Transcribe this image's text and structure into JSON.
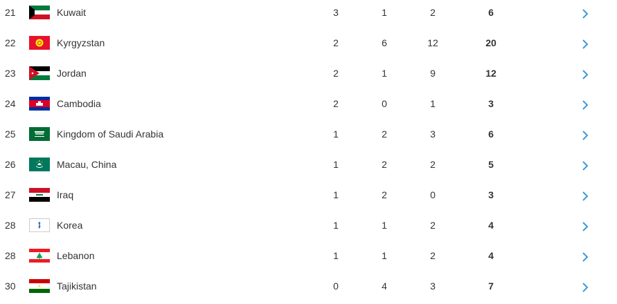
{
  "medal_table": {
    "rows": [
      {
        "rank": "21",
        "country": "Kuwait",
        "gold": "3",
        "silver": "1",
        "bronze": "2",
        "total": "6",
        "flag": "kuwait-flag"
      },
      {
        "rank": "22",
        "country": "Kyrgyzstan",
        "gold": "2",
        "silver": "6",
        "bronze": "12",
        "total": "20",
        "flag": "kyrgyzstan-flag"
      },
      {
        "rank": "23",
        "country": "Jordan",
        "gold": "2",
        "silver": "1",
        "bronze": "9",
        "total": "12",
        "flag": "jordan-flag"
      },
      {
        "rank": "24",
        "country": "Cambodia",
        "gold": "2",
        "silver": "0",
        "bronze": "1",
        "total": "3",
        "flag": "cambodia-flag"
      },
      {
        "rank": "25",
        "country": "Kingdom of Saudi Arabia",
        "gold": "1",
        "silver": "2",
        "bronze": "3",
        "total": "6",
        "flag": "saudi-arabia-flag"
      },
      {
        "rank": "26",
        "country": "Macau, China",
        "gold": "1",
        "silver": "2",
        "bronze": "2",
        "total": "5",
        "flag": "macau-flag"
      },
      {
        "rank": "27",
        "country": "Iraq",
        "gold": "1",
        "silver": "2",
        "bronze": "0",
        "total": "3",
        "flag": "iraq-flag"
      },
      {
        "rank": "28",
        "country": "Korea",
        "gold": "1",
        "silver": "1",
        "bronze": "2",
        "total": "4",
        "flag": "korea-unification-flag"
      },
      {
        "rank": "28",
        "country": "Lebanon",
        "gold": "1",
        "silver": "1",
        "bronze": "2",
        "total": "4",
        "flag": "lebanon-flag"
      },
      {
        "rank": "30",
        "country": "Tajikistan",
        "gold": "0",
        "silver": "4",
        "bronze": "3",
        "total": "7",
        "flag": "tajikistan-flag"
      }
    ],
    "chevron_icon": "chevron-right-icon",
    "colors": {
      "chevron": "#3b9ad9",
      "text": "#333333"
    }
  }
}
